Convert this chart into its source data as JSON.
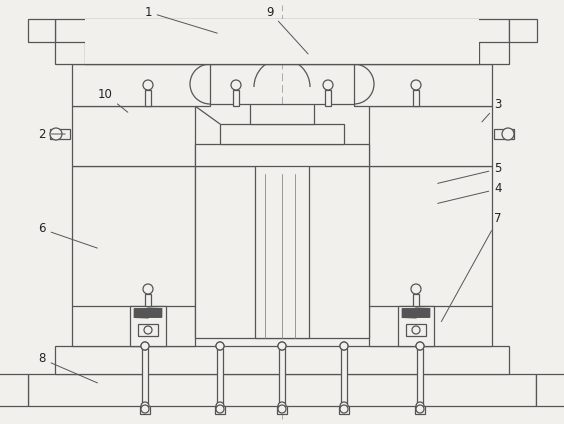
{
  "bg_color": "#f2f0ed",
  "line_color": "#555555",
  "lw": 0.9,
  "fig_w": 5.64,
  "fig_h": 4.24,
  "dpi": 100
}
